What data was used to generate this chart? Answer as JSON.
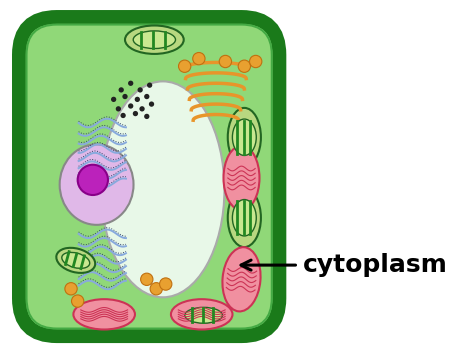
{
  "bg_color": "#ffffff",
  "cell_wall_color": "#1a7a1a",
  "cell_wall_lw": 10,
  "cytoplasm_color": "#90d878",
  "vacuole_color": "#e8f8e8",
  "vacuole_border": "#aaaaaa",
  "nucleus_fill": "#e0b8e8",
  "nucleus_border": "#888888",
  "nucleolus_color": "#bb22bb",
  "nucleolus_border": "#880088",
  "chloroplast_fill": "#c8e878",
  "chloroplast_border": "#226622",
  "chloroplast_inner": "#448844",
  "mito_pink_fill": "#f090a0",
  "mito_pink_border": "#cc3355",
  "mito_green_fill": "#88cc88",
  "mito_green_border": "#226622",
  "er_blue": "#88aadd",
  "er_dark": "#334466",
  "golgi_color": "#e8952a",
  "vesicle_color": "#e8a030",
  "vesicle_border": "#c07010",
  "dot_color": "#222222",
  "label_text": "cytoplasm",
  "label_fontsize": 18,
  "label_fontweight": "bold",
  "label_color": "#000000",
  "arrow_color": "#000000",
  "light_green_border": "#44aa44"
}
